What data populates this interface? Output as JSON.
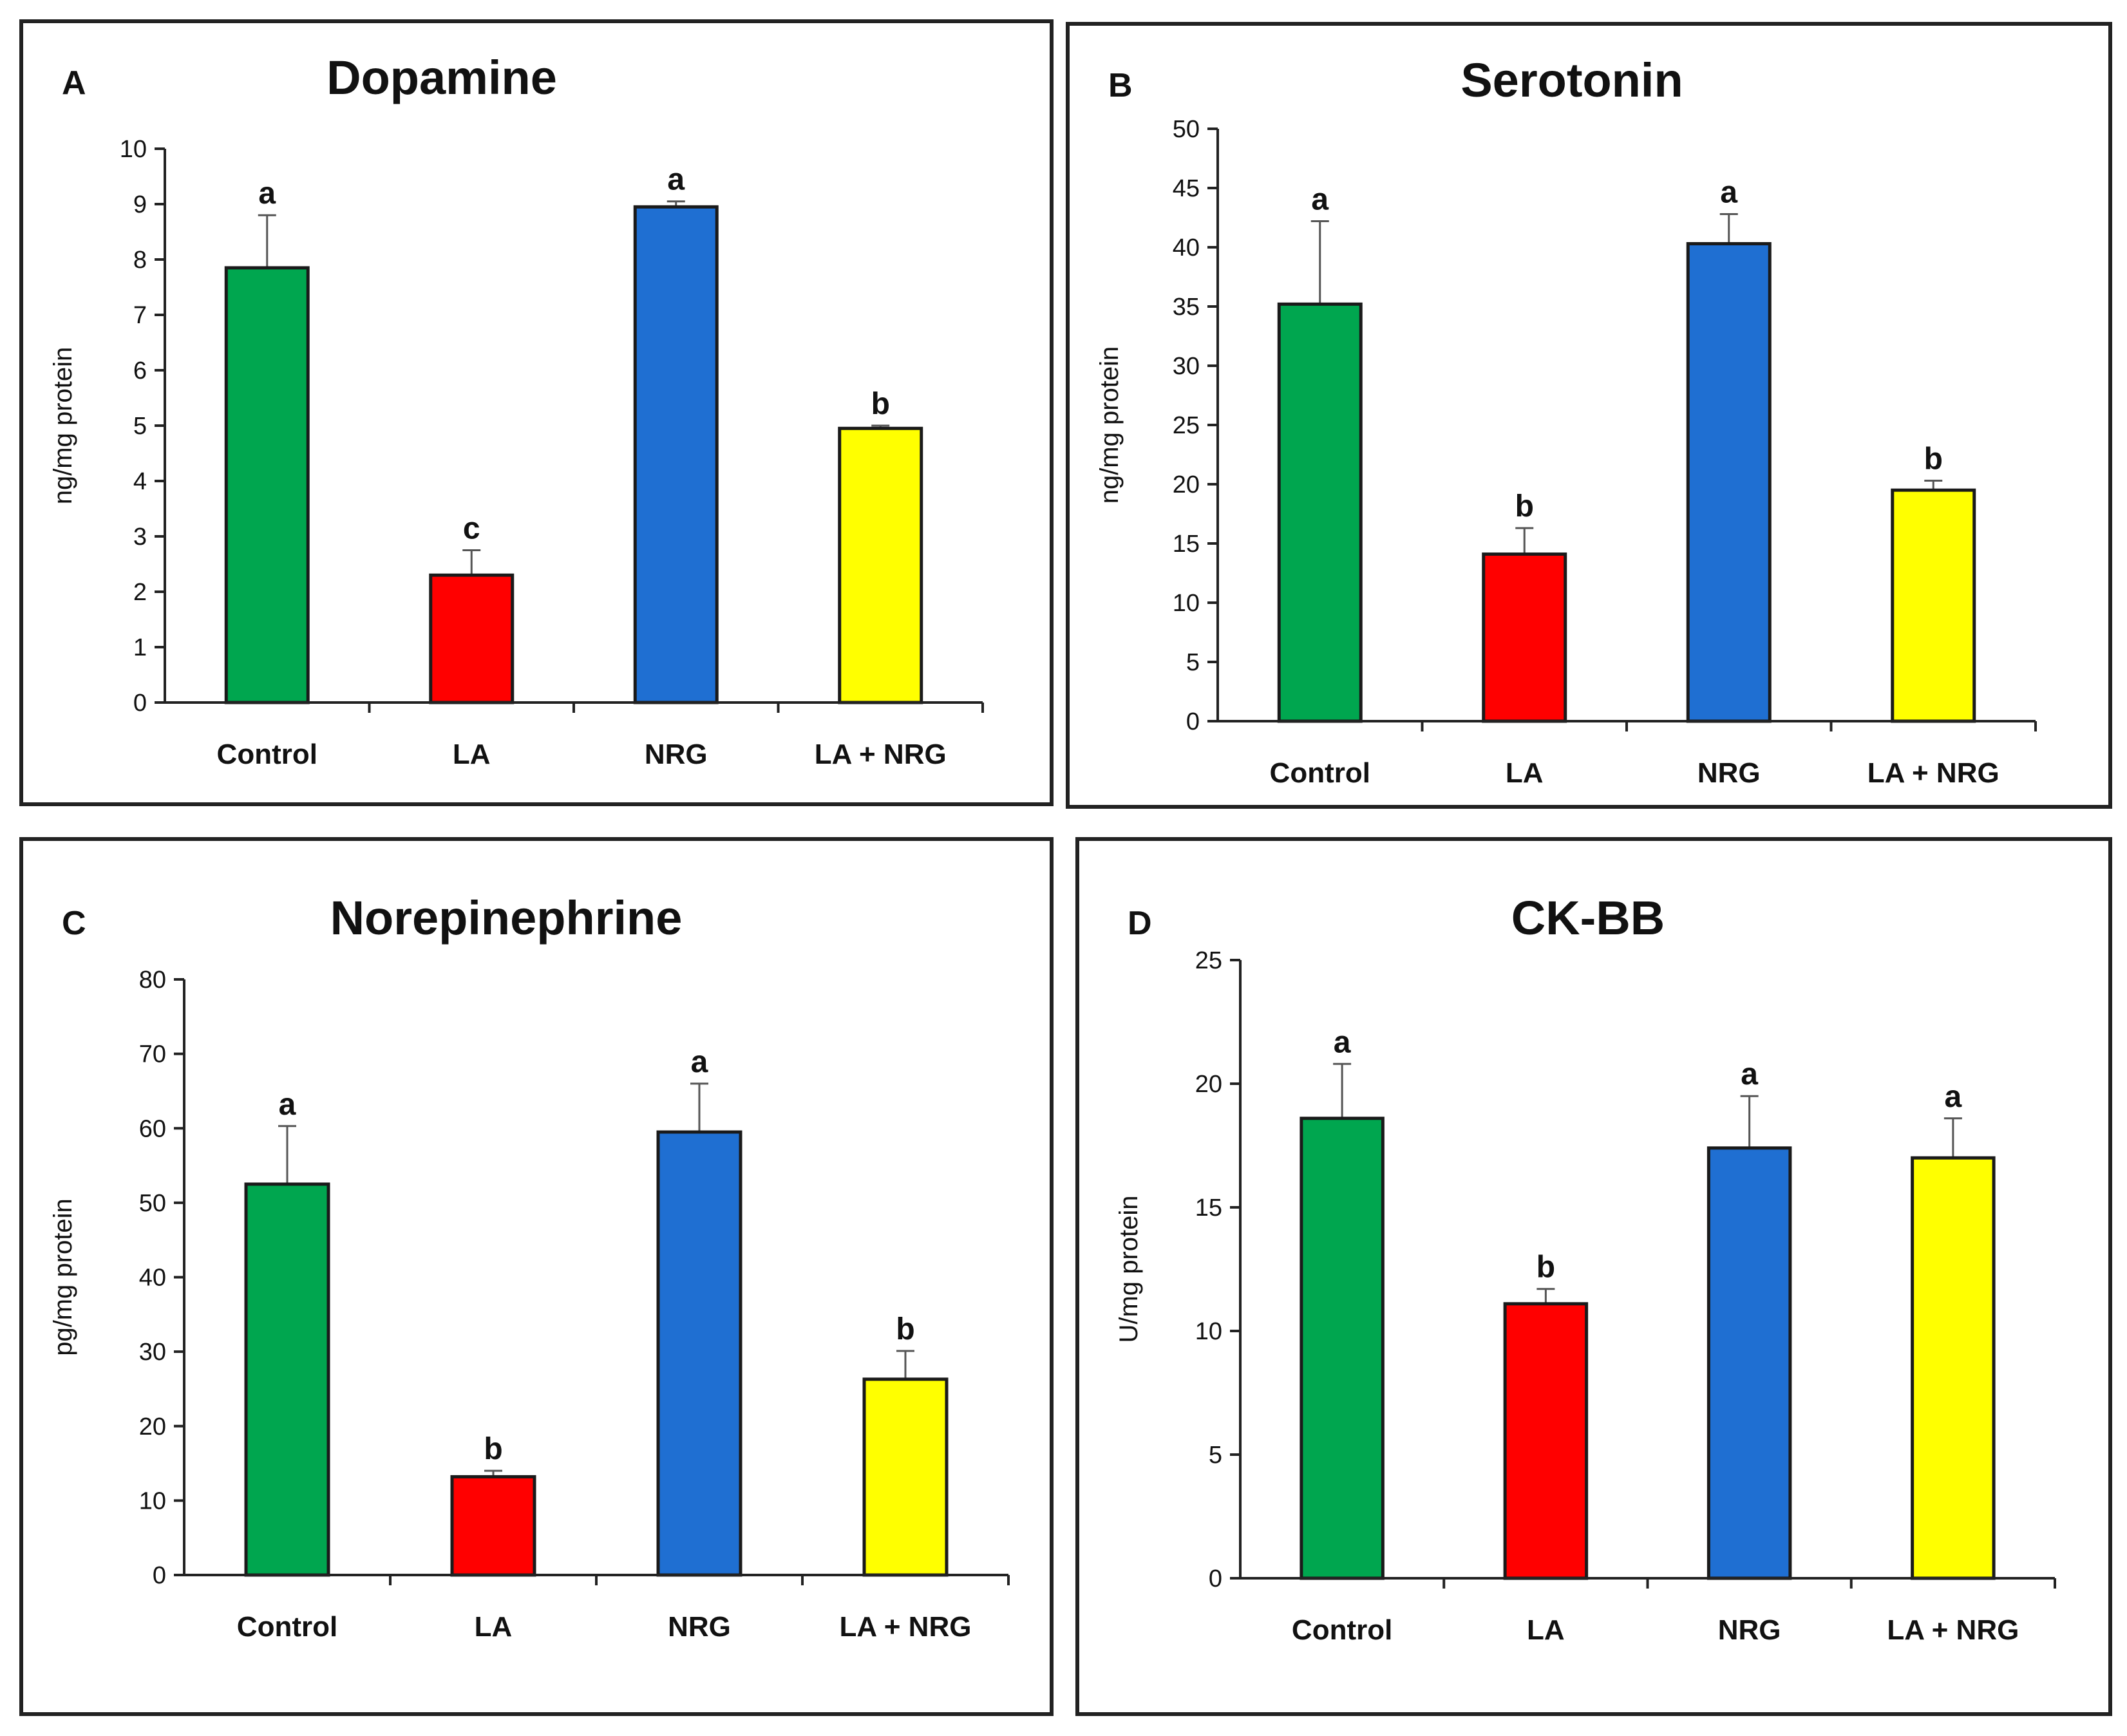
{
  "colors": {
    "control": "#00a64f",
    "la": "#ff0000",
    "nrg": "#1f6fd2",
    "la_nrg": "#ffff00",
    "axis": "#222222"
  },
  "chart_data": [
    {
      "type": "bar",
      "panel_label": "A",
      "title": "Dopamine",
      "ylabel": "ng/mg protein",
      "xlabel": "",
      "categories": [
        "Control",
        "LA",
        "NRG",
        "LA + NRG"
      ],
      "values": [
        7.85,
        2.3,
        8.95,
        4.95
      ],
      "errors": [
        0.95,
        0.45,
        0.1,
        0.05
      ],
      "significance": [
        "a",
        "c",
        "a",
        "b"
      ],
      "ylim": [
        0,
        10
      ],
      "yticks": [
        0,
        1,
        2,
        3,
        4,
        5,
        6,
        7,
        8,
        9,
        10
      ],
      "ytick_labels": [
        "0",
        "1",
        "2",
        "3",
        "4",
        "5",
        "6",
        "7",
        "8",
        "9",
        "10"
      ]
    },
    {
      "type": "bar",
      "panel_label": "B",
      "title": "Serotonin",
      "ylabel": "ng/mg protein",
      "xlabel": "",
      "categories": [
        "Control",
        "LA",
        "NRG",
        "LA + NRG"
      ],
      "values": [
        35.2,
        14.1,
        40.3,
        19.5
      ],
      "errors": [
        7.0,
        2.2,
        2.5,
        0.8
      ],
      "significance": [
        "a",
        "b",
        "a",
        "b"
      ],
      "ylim": [
        0,
        50
      ],
      "yticks": [
        0,
        5,
        10,
        15,
        20,
        25,
        30,
        35,
        40,
        45,
        50
      ],
      "ytick_labels": [
        "0",
        "5",
        "10",
        "15",
        "20",
        "25",
        "30",
        "35",
        "40",
        "45",
        "50"
      ]
    },
    {
      "type": "bar",
      "panel_label": "C",
      "title": "Norepinephrine",
      "ylabel": "pg/mg protein",
      "xlabel": "",
      "categories": [
        "Control",
        "LA",
        "NRG",
        "LA + NRG"
      ],
      "values": [
        52.5,
        13.2,
        59.5,
        26.3
      ],
      "errors": [
        7.8,
        0.8,
        6.5,
        3.8
      ],
      "significance": [
        "a",
        "b",
        "a",
        "b"
      ],
      "ylim": [
        0,
        80
      ],
      "yticks": [
        0,
        10,
        20,
        30,
        40,
        50,
        60,
        70,
        80
      ],
      "ytick_labels": [
        "0",
        "10",
        "20",
        "30",
        "40",
        "50",
        "60",
        "70",
        "80"
      ]
    },
    {
      "type": "bar",
      "panel_label": "D",
      "title": "CK-BB",
      "ylabel": "U/mg protein",
      "xlabel": "",
      "categories": [
        "Control",
        "LA",
        "NRG",
        "LA + NRG"
      ],
      "values": [
        18.6,
        11.1,
        17.4,
        17.0
      ],
      "errors": [
        2.2,
        0.6,
        2.1,
        1.6
      ],
      "significance": [
        "a",
        "b",
        "a",
        "a"
      ],
      "ylim": [
        0,
        25
      ],
      "yticks": [
        0,
        5,
        10,
        15,
        20,
        25
      ],
      "ytick_labels": [
        "0",
        "5",
        "10",
        "15",
        "20",
        "25"
      ]
    }
  ]
}
